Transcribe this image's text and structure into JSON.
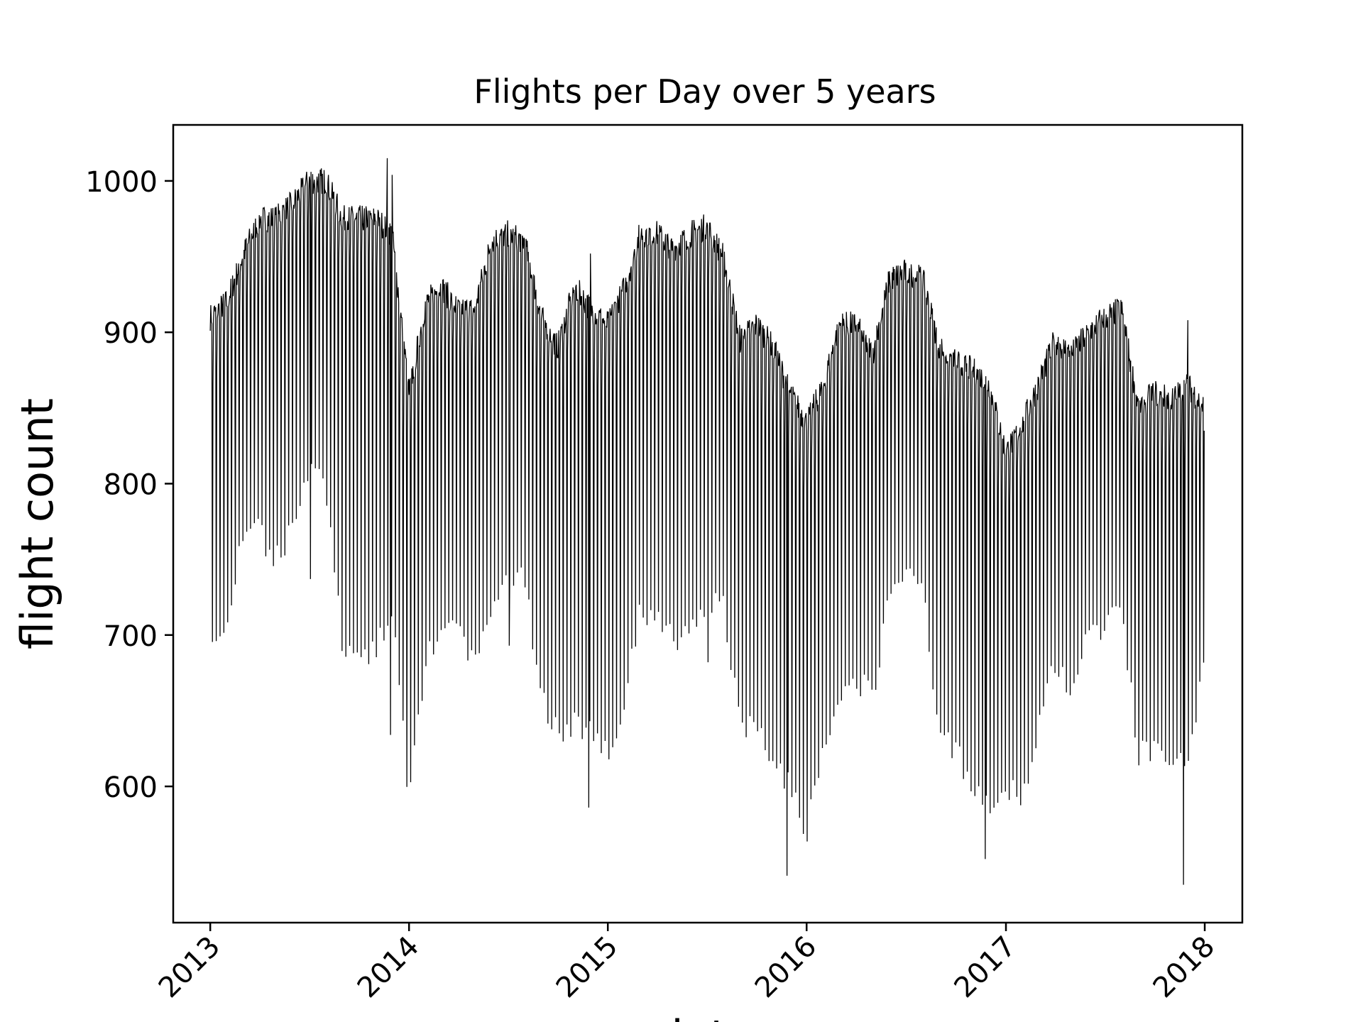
{
  "chart_data": {
    "type": "line",
    "title": "Flights per Day over 5 years",
    "xlabel": "date",
    "ylabel": "flight count",
    "x_type": "date",
    "xlim": [
      "2012-10-25",
      "2018-03-11"
    ],
    "ylim": [
      510,
      1037
    ],
    "grid": false,
    "legend": "none",
    "line_color": "#000000",
    "x_ticks": [
      "2013",
      "2014",
      "2015",
      "2016",
      "2017",
      "2018"
    ],
    "x_tick_dates": [
      "2013-01-01",
      "2014-01-01",
      "2015-01-01",
      "2016-01-01",
      "2017-01-01",
      "2018-01-01"
    ],
    "y_ticks": [
      600,
      700,
      800,
      900,
      1000
    ],
    "series": [
      {
        "x_start": "2013-01-01",
        "x_end": "2017-12-31",
        "x_step_days": 1,
        "weekday_level": [
          {
            "x": "2013-01-01",
            "y": 910
          },
          {
            "x": "2013-02-01",
            "y": 920
          },
          {
            "x": "2013-03-01",
            "y": 950
          },
          {
            "x": "2013-04-01",
            "y": 975
          },
          {
            "x": "2013-05-01",
            "y": 975
          },
          {
            "x": "2013-06-01",
            "y": 985
          },
          {
            "x": "2013-07-01",
            "y": 1000
          },
          {
            "x": "2013-08-01",
            "y": 1000
          },
          {
            "x": "2013-09-01",
            "y": 975
          },
          {
            "x": "2013-10-01",
            "y": 975
          },
          {
            "x": "2013-11-01",
            "y": 975
          },
          {
            "x": "2013-12-01",
            "y": 965
          },
          {
            "x": "2014-01-01",
            "y": 860
          },
          {
            "x": "2014-02-01",
            "y": 920
          },
          {
            "x": "2014-03-01",
            "y": 930
          },
          {
            "x": "2014-04-01",
            "y": 915
          },
          {
            "x": "2014-05-01",
            "y": 915
          },
          {
            "x": "2014-06-01",
            "y": 960
          },
          {
            "x": "2014-07-01",
            "y": 965
          },
          {
            "x": "2014-08-01",
            "y": 960
          },
          {
            "x": "2014-09-01",
            "y": 910
          },
          {
            "x": "2014-10-01",
            "y": 890
          },
          {
            "x": "2014-11-01",
            "y": 930
          },
          {
            "x": "2014-12-01",
            "y": 915
          },
          {
            "x": "2015-01-01",
            "y": 905
          },
          {
            "x": "2015-02-01",
            "y": 930
          },
          {
            "x": "2015-03-01",
            "y": 965
          },
          {
            "x": "2015-04-01",
            "y": 965
          },
          {
            "x": "2015-05-01",
            "y": 955
          },
          {
            "x": "2015-06-01",
            "y": 965
          },
          {
            "x": "2015-07-01",
            "y": 970
          },
          {
            "x": "2015-08-01",
            "y": 950
          },
          {
            "x": "2015-09-01",
            "y": 895
          },
          {
            "x": "2015-10-01",
            "y": 905
          },
          {
            "x": "2015-11-01",
            "y": 890
          },
          {
            "x": "2015-12-01",
            "y": 860
          },
          {
            "x": "2016-01-01",
            "y": 840
          },
          {
            "x": "2016-02-01",
            "y": 865
          },
          {
            "x": "2016-03-01",
            "y": 905
          },
          {
            "x": "2016-04-01",
            "y": 905
          },
          {
            "x": "2016-05-01",
            "y": 885
          },
          {
            "x": "2016-06-01",
            "y": 935
          },
          {
            "x": "2016-07-01",
            "y": 940
          },
          {
            "x": "2016-08-01",
            "y": 935
          },
          {
            "x": "2016-09-01",
            "y": 890
          },
          {
            "x": "2016-10-01",
            "y": 880
          },
          {
            "x": "2016-11-01",
            "y": 875
          },
          {
            "x": "2016-12-01",
            "y": 865
          },
          {
            "x": "2017-01-01",
            "y": 820
          },
          {
            "x": "2017-02-01",
            "y": 840
          },
          {
            "x": "2017-03-01",
            "y": 865
          },
          {
            "x": "2017-04-01",
            "y": 895
          },
          {
            "x": "2017-05-01",
            "y": 885
          },
          {
            "x": "2017-06-01",
            "y": 900
          },
          {
            "x": "2017-07-01",
            "y": 910
          },
          {
            "x": "2017-08-01",
            "y": 915
          },
          {
            "x": "2017-09-01",
            "y": 850
          },
          {
            "x": "2017-10-01",
            "y": 860
          },
          {
            "x": "2017-11-01",
            "y": 855
          },
          {
            "x": "2017-12-01",
            "y": 865
          },
          {
            "x": "2017-12-31",
            "y": 850
          }
        ],
        "saturday_level": [
          {
            "x": "2013-01-01",
            "y": 690
          },
          {
            "x": "2013-02-01",
            "y": 700
          },
          {
            "x": "2013-03-01",
            "y": 765
          },
          {
            "x": "2013-04-01",
            "y": 768
          },
          {
            "x": "2013-05-01",
            "y": 750
          },
          {
            "x": "2013-06-01",
            "y": 770
          },
          {
            "x": "2013-07-01",
            "y": 810
          },
          {
            "x": "2013-08-01",
            "y": 800
          },
          {
            "x": "2013-09-01",
            "y": 690
          },
          {
            "x": "2013-10-01",
            "y": 685
          },
          {
            "x": "2013-11-01",
            "y": 690
          },
          {
            "x": "2013-12-01",
            "y": 720
          },
          {
            "x": "2014-01-01",
            "y": 590
          },
          {
            "x": "2014-02-01",
            "y": 680
          },
          {
            "x": "2014-03-01",
            "y": 710
          },
          {
            "x": "2014-04-01",
            "y": 700
          },
          {
            "x": "2014-05-01",
            "y": 680
          },
          {
            "x": "2014-06-01",
            "y": 720
          },
          {
            "x": "2014-07-01",
            "y": 740
          },
          {
            "x": "2014-08-01",
            "y": 735
          },
          {
            "x": "2014-09-01",
            "y": 660
          },
          {
            "x": "2014-10-01",
            "y": 635
          },
          {
            "x": "2014-11-01",
            "y": 640
          },
          {
            "x": "2014-12-01",
            "y": 640
          },
          {
            "x": "2015-01-01",
            "y": 620
          },
          {
            "x": "2015-02-01",
            "y": 660
          },
          {
            "x": "2015-03-01",
            "y": 715
          },
          {
            "x": "2015-04-01",
            "y": 715
          },
          {
            "x": "2015-05-01",
            "y": 695
          },
          {
            "x": "2015-06-01",
            "y": 700
          },
          {
            "x": "2015-07-01",
            "y": 720
          },
          {
            "x": "2015-08-01",
            "y": 720
          },
          {
            "x": "2015-09-01",
            "y": 640
          },
          {
            "x": "2015-10-01",
            "y": 640
          },
          {
            "x": "2015-11-01",
            "y": 620
          },
          {
            "x": "2015-12-01",
            "y": 600
          },
          {
            "x": "2016-01-01",
            "y": 570
          },
          {
            "x": "2016-02-01",
            "y": 620
          },
          {
            "x": "2016-03-01",
            "y": 665
          },
          {
            "x": "2016-04-01",
            "y": 670
          },
          {
            "x": "2016-05-01",
            "y": 660
          },
          {
            "x": "2016-06-01",
            "y": 725
          },
          {
            "x": "2016-07-01",
            "y": 735
          },
          {
            "x": "2016-08-01",
            "y": 740
          },
          {
            "x": "2016-09-01",
            "y": 630
          },
          {
            "x": "2016-10-01",
            "y": 625
          },
          {
            "x": "2016-11-01",
            "y": 600
          },
          {
            "x": "2016-12-01",
            "y": 590
          },
          {
            "x": "2017-01-01",
            "y": 600
          },
          {
            "x": "2017-02-01",
            "y": 590
          },
          {
            "x": "2017-03-01",
            "y": 640
          },
          {
            "x": "2017-04-01",
            "y": 680
          },
          {
            "x": "2017-05-01",
            "y": 665
          },
          {
            "x": "2017-06-01",
            "y": 700
          },
          {
            "x": "2017-07-01",
            "y": 705
          },
          {
            "x": "2017-08-01",
            "y": 720
          },
          {
            "x": "2017-09-01",
            "y": 620
          },
          {
            "x": "2017-10-01",
            "y": 625
          },
          {
            "x": "2017-11-01",
            "y": 610
          },
          {
            "x": "2017-12-01",
            "y": 620
          },
          {
            "x": "2017-12-31",
            "y": 680
          }
        ],
        "sunday_level": [
          {
            "x": "2013-01-01",
            "y": 860
          },
          {
            "x": "2013-03-01",
            "y": 920
          },
          {
            "x": "2013-05-01",
            "y": 935
          },
          {
            "x": "2013-07-01",
            "y": 975
          },
          {
            "x": "2013-09-01",
            "y": 945
          },
          {
            "x": "2013-11-01",
            "y": 945
          },
          {
            "x": "2014-01-01",
            "y": 820
          },
          {
            "x": "2014-03-01",
            "y": 895
          },
          {
            "x": "2014-05-01",
            "y": 880
          },
          {
            "x": "2014-07-01",
            "y": 930
          },
          {
            "x": "2014-09-01",
            "y": 870
          },
          {
            "x": "2014-11-01",
            "y": 890
          },
          {
            "x": "2015-01-01",
            "y": 860
          },
          {
            "x": "2015-03-01",
            "y": 925
          },
          {
            "x": "2015-05-01",
            "y": 920
          },
          {
            "x": "2015-07-01",
            "y": 935
          },
          {
            "x": "2015-09-01",
            "y": 855
          },
          {
            "x": "2015-11-01",
            "y": 850
          },
          {
            "x": "2016-01-01",
            "y": 800
          },
          {
            "x": "2016-03-01",
            "y": 860
          },
          {
            "x": "2016-05-01",
            "y": 850
          },
          {
            "x": "2016-07-01",
            "y": 900
          },
          {
            "x": "2016-09-01",
            "y": 850
          },
          {
            "x": "2016-11-01",
            "y": 830
          },
          {
            "x": "2017-01-01",
            "y": 790
          },
          {
            "x": "2017-03-01",
            "y": 830
          },
          {
            "x": "2017-05-01",
            "y": 850
          },
          {
            "x": "2017-07-01",
            "y": 870
          },
          {
            "x": "2017-09-01",
            "y": 815
          },
          {
            "x": "2017-11-01",
            "y": 820
          },
          {
            "x": "2017-12-31",
            "y": 830
          }
        ],
        "noticeable_dips": [
          {
            "x": "2013-07-04",
            "y": 737
          },
          {
            "x": "2013-11-28",
            "y": 634
          },
          {
            "x": "2014-07-04",
            "y": 693
          },
          {
            "x": "2014-11-27",
            "y": 586
          },
          {
            "x": "2015-07-04",
            "y": 682
          },
          {
            "x": "2015-11-26",
            "y": 541
          },
          {
            "x": "2016-11-24",
            "y": 552
          },
          {
            "x": "2017-11-23",
            "y": 535
          }
        ],
        "noticeable_peaks": [
          {
            "x": "2013-07-05",
            "y": 1006
          },
          {
            "x": "2013-11-22",
            "y": 1015
          },
          {
            "x": "2013-12-01",
            "y": 1004
          },
          {
            "x": "2014-11-30",
            "y": 952
          },
          {
            "x": "2017-12-01",
            "y": 908
          }
        ]
      }
    ]
  }
}
